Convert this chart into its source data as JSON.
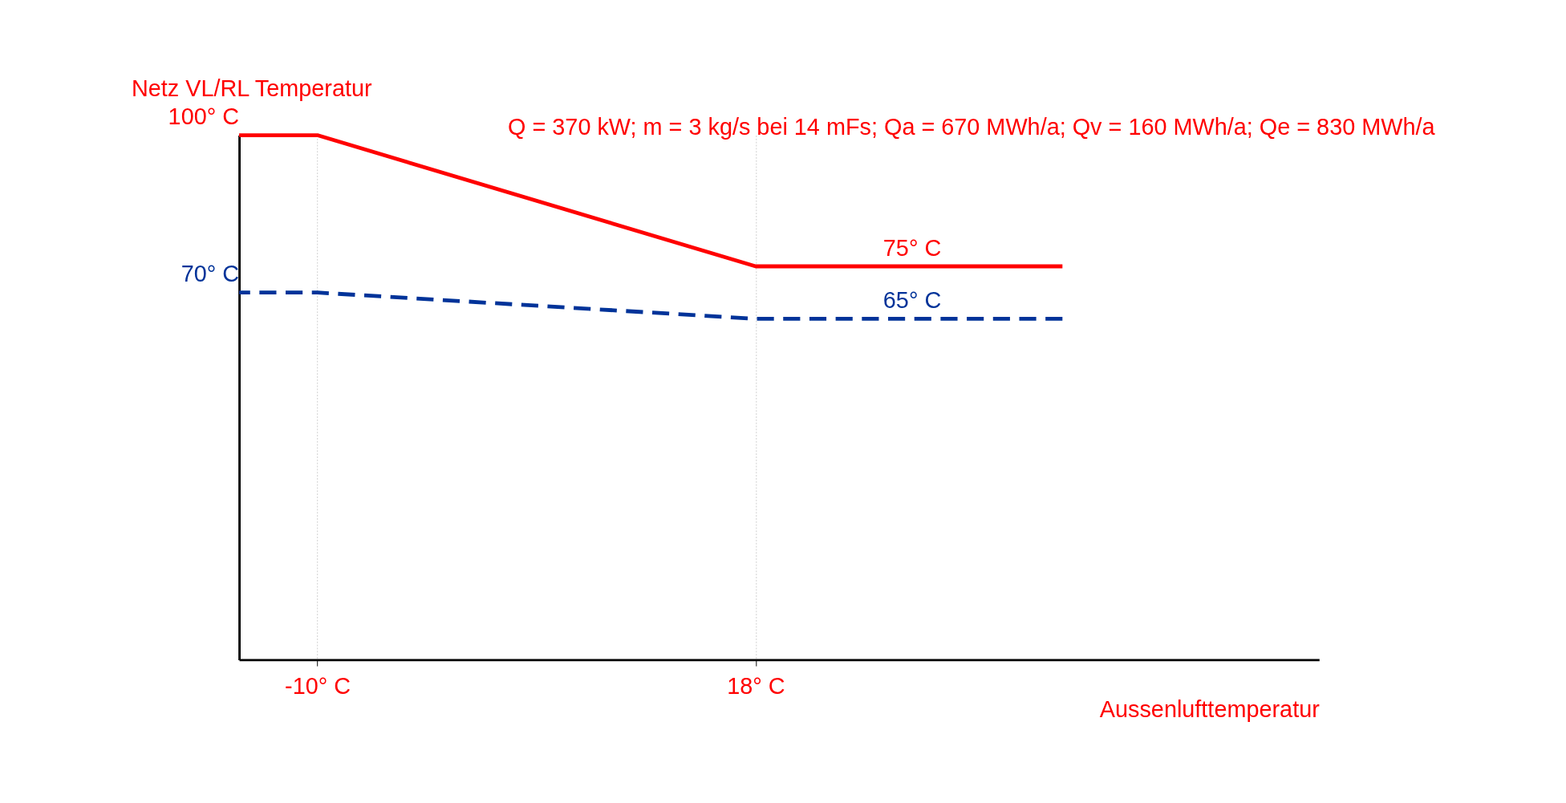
{
  "chart_data": {
    "type": "line",
    "xlabel": "Aussenlufttemperatur",
    "ylabel": "Netz VL/RL Temperatur",
    "xlim": [
      -15,
      54
    ],
    "xticks": [
      {
        "value": -10,
        "label": "-10° C"
      },
      {
        "value": 18,
        "label": "18° C"
      }
    ],
    "tick_labels": "x",
    "grid": "x",
    "marker": "none",
    "series": [
      {
        "color": "#ff0000",
        "x": [
          -15,
          -10,
          18,
          28,
          37.6
        ],
        "values": [
          100,
          100,
          75,
          75,
          75
        ],
        "value_labels": [
          "100° C",
          null,
          null,
          "75° C",
          null
        ],
        "line_style": "solid"
      },
      {
        "color": "#003399",
        "x": [
          -15,
          -10,
          18,
          28,
          37.6
        ],
        "values": [
          70,
          70,
          65,
          65,
          65
        ],
        "value_labels": [
          "70° C",
          null,
          null,
          "65° C",
          null
        ],
        "line_style": "dashed"
      }
    ],
    "annotations": [
      "Q = 370 kW; m = 3 kg/s bei 14 mFs; Qa = 670 MWh/a; Qv = 160 MWh/a; Qe = 830 MWh/a"
    ]
  }
}
